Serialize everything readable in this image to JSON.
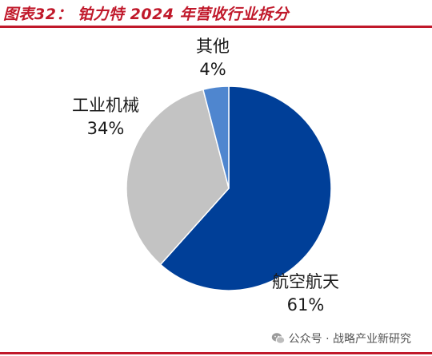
{
  "title": "图表32：  铂力特 2024 年营收行业拆分",
  "watermark": {
    "icon": "wechat-icon",
    "text": "公众号 · 战略产业新研究"
  },
  "colors": {
    "brand_red": "#c0182a",
    "aerospace": "#003f98",
    "industrial": "#c3c3c3",
    "other": "#4f86cf"
  },
  "chart_data": {
    "type": "pie",
    "title": "图表32：  铂力特 2024 年营收行业拆分",
    "slices": [
      {
        "name": "航空航天",
        "value": 61,
        "label": "61%"
      },
      {
        "name": "工业机械",
        "value": 34,
        "label": "34%"
      },
      {
        "name": "其他",
        "value": 4,
        "label": "4%"
      }
    ],
    "start": "12 o'clock",
    "direction": "clockwise",
    "legend": "none",
    "labels": "outside, category above percentage"
  }
}
